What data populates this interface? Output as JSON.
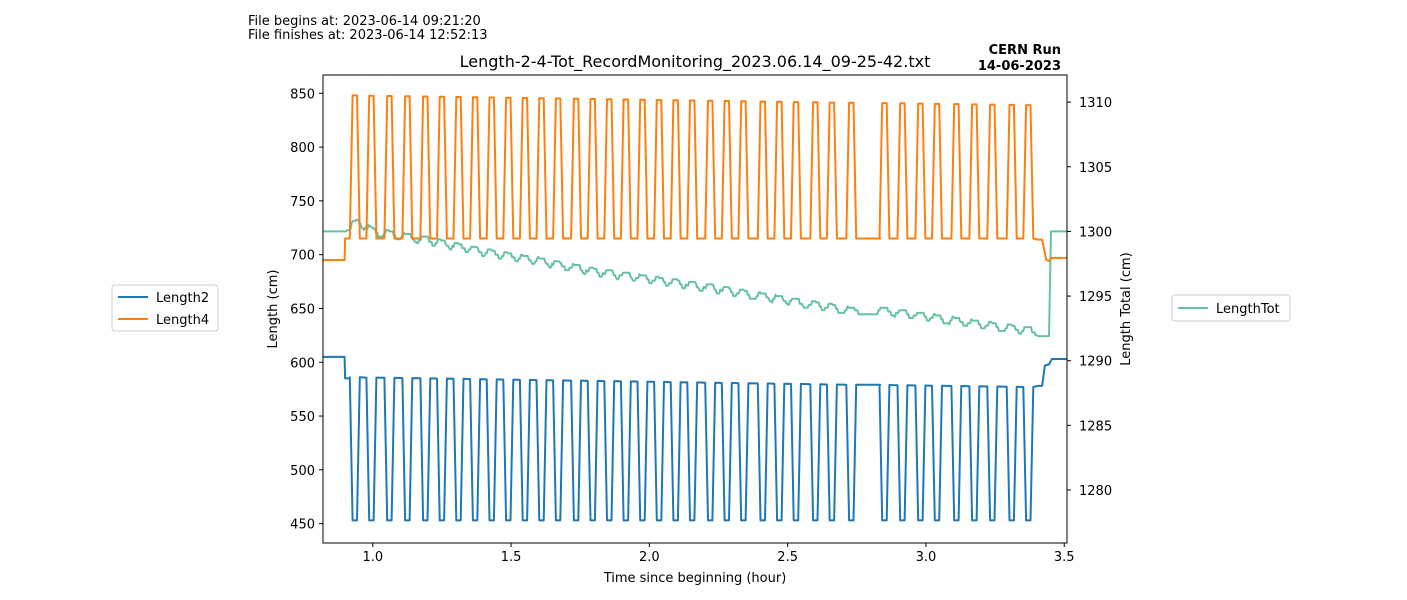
{
  "header": {
    "file_begins": "File begins at: 2023-06-14 09:21:20",
    "file_finishes": "File finishes at: 2023-06-14 12:52:13",
    "run_name": "CERN Run",
    "run_date": "14-06-2023"
  },
  "legend_left": [
    "Length2",
    "Length4"
  ],
  "legend_right": [
    "LengthTot"
  ],
  "colors": {
    "Length2": "#1f77b4",
    "Length4": "#ff7f0e",
    "LengthTot": "#66c2a5"
  },
  "chart_data": {
    "type": "line",
    "title": "Length-2-4-Tot_RecordMonitoring_2023.06.14_09-25-42.txt",
    "xlabel": "Time since beginning (hour)",
    "ylabel": "Length (cm)",
    "y2label": "Length Total (cm)",
    "xlim": [
      0.82,
      3.51
    ],
    "ylim": [
      432,
      867
    ],
    "y2lim": [
      1275.9,
      1312.1
    ],
    "xticks": [
      "1.0",
      "1.5",
      "2.0",
      "2.5",
      "3.0",
      "3.5"
    ],
    "yticks": [
      "450",
      "500",
      "550",
      "600",
      "650",
      "700",
      "750",
      "800",
      "850"
    ],
    "y2ticks": [
      "1280",
      "1285",
      "1290",
      "1295",
      "1300",
      "1305",
      "1310"
    ],
    "legend_placement": "outside-left (Length2, Length4); outside-right (LengthTot)",
    "grid": false,
    "cycle_centers": [
      0.935,
      0.995,
      1.06,
      1.125,
      1.19,
      1.25,
      1.31,
      1.37,
      1.43,
      1.49,
      1.55,
      1.61,
      1.67,
      1.735,
      1.795,
      1.855,
      1.915,
      1.975,
      2.035,
      2.095,
      2.155,
      2.22,
      2.28,
      2.34,
      2.41,
      2.47,
      2.53,
      2.6,
      2.66,
      2.73,
      2.85,
      2.915,
      2.98,
      3.04,
      3.11,
      3.175,
      3.24,
      3.31,
      3.37
    ],
    "series": [
      {
        "name": "Length2",
        "axis": "left",
        "pre": [
          [
            0.82,
            605
          ],
          [
            0.898,
            605
          ],
          [
            0.9,
            585
          ],
          [
            0.915,
            585
          ]
        ],
        "low": 453,
        "high_start": 586,
        "high_end": 577,
        "post": [
          [
            3.405,
            578
          ],
          [
            3.42,
            578
          ],
          [
            3.43,
            597
          ],
          [
            3.445,
            598
          ],
          [
            3.455,
            603
          ],
          [
            3.51,
            603
          ]
        ]
      },
      {
        "name": "Length4",
        "axis": "left",
        "pre": [
          [
            0.82,
            695
          ],
          [
            0.898,
            695
          ],
          [
            0.9,
            715
          ],
          [
            0.915,
            715
          ]
        ],
        "high_start": 848,
        "high_end": 839,
        "low_start": 715,
        "low_end": 715,
        "post": [
          [
            3.405,
            714
          ],
          [
            3.42,
            714
          ],
          [
            3.435,
            695
          ],
          [
            3.445,
            694
          ],
          [
            3.455,
            697
          ],
          [
            3.51,
            697
          ]
        ]
      },
      {
        "name": "LengthTot",
        "axis": "right",
        "values": [
          [
            0.82,
            1300.0
          ],
          [
            0.9,
            1300.0
          ],
          [
            0.95,
            1300.4
          ],
          [
            1.0,
            1299.7
          ],
          [
            1.2,
            1299.0
          ],
          [
            1.4,
            1298.1
          ],
          [
            1.6,
            1297.4
          ],
          [
            1.8,
            1296.6
          ],
          [
            2.0,
            1296.0
          ],
          [
            2.2,
            1295.4
          ],
          [
            2.4,
            1294.7
          ],
          [
            2.6,
            1294.0
          ],
          [
            2.72,
            1293.6
          ],
          [
            2.84,
            1293.6
          ],
          [
            3.0,
            1293.1
          ],
          [
            3.2,
            1292.5
          ],
          [
            3.42,
            1291.9
          ],
          [
            3.445,
            1291.9
          ],
          [
            3.452,
            1300.0
          ],
          [
            3.51,
            1300.0
          ]
        ]
      }
    ]
  }
}
